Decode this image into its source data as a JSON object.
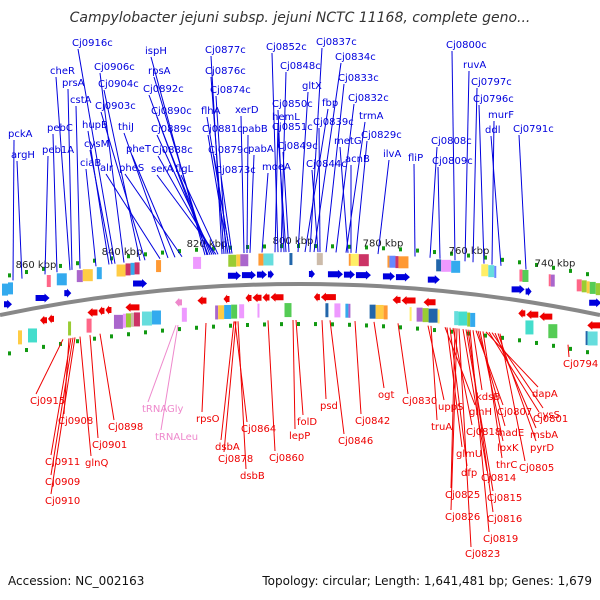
{
  "header": {
    "title": "Campylobacter jejuni subsp. jejuni NCTC 11168, complete geno..."
  },
  "footer": {
    "accession": "Accession: NC_002163",
    "topology": "Topology: circular; Length: 1,641,481 bp; Genes: 1,679"
  },
  "colors": {
    "forward": "#0000dd",
    "reverse": "#ee0000",
    "rna": "#ee88cc",
    "backbone": "#888888",
    "tick": "#119911"
  },
  "scale_labels": [
    "860 kbp",
    "840 kbp",
    "820 kbp",
    "800 kbp",
    "780 kbp",
    "760 kbp",
    "740 kbp"
  ],
  "forward_genes": [
    "pckA",
    "argH",
    "peb1A",
    "pebC",
    "cheR",
    "prsA",
    "cstA",
    "ciaB",
    "hupB",
    "cysM",
    "Cj0916c",
    "Cj0906c",
    "Cj0904c",
    "Cj0903c",
    "alr",
    "thiJ",
    "pheS",
    "pheT",
    "ispH",
    "rpsA",
    "Cj0892c",
    "Cj0890c",
    "Cj0889c",
    "Cj0888c",
    "serA",
    "flgL",
    "Cj0877c",
    "Cj0876c",
    "Cj0874c",
    "flhA",
    "Cj0881c",
    "Cj0879c",
    "Cj0873c",
    "xerD",
    "pabB",
    "pabA",
    "moeA",
    "hemL",
    "Cj0852c",
    "Cj0848c",
    "Cj0850c",
    "Cj0851c",
    "Cj0849c",
    "gltX",
    "fbp",
    "Cj0837c",
    "Cj0834c",
    "Cj0833c",
    "Cj0839c",
    "Cj0844c",
    "Cj0832c",
    "trmA",
    "metG",
    "acnB",
    "Cj0829c",
    "ilvA",
    "fliP",
    "Cj0808c",
    "Cj0809c",
    "Cj0800c",
    "ruvA",
    "Cj0797c",
    "Cj0796c",
    "murF",
    "ddl",
    "Cj0791c"
  ],
  "reverse_genes": [
    "Cj0915",
    "Cj0908",
    "Cj0911",
    "Cj0909",
    "Cj0910",
    "glnQ",
    "Cj0901",
    "Cj0898",
    "rpsO",
    "Cj0864",
    "dsbA",
    "Cj0878",
    "dsbB",
    "Cj0860",
    "folD",
    "lepP",
    "psd",
    "Cj0846",
    "Cj0842",
    "ogt",
    "Cj0830",
    "uppS",
    "truA",
    "glnH",
    "glmU",
    "dfp",
    "Cj0818",
    "Cj0825",
    "Cj0826",
    "Cj0823",
    "Cj0814",
    "Cj0815",
    "Cj0816",
    "Cj0819",
    "kdsB",
    "Cj0807",
    "nadE",
    "lpxK",
    "thrC",
    "dapA",
    "Cj0801",
    "cysS",
    "msbA",
    "pyrD",
    "Cj0805",
    "Cj0794"
  ],
  "rna_genes": [
    "tRNAGly",
    "tRNALeu"
  ]
}
